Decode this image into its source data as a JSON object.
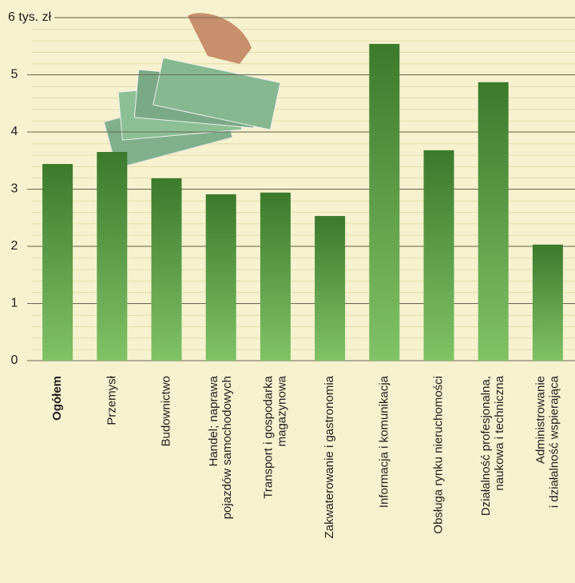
{
  "chart_data": {
    "type": "bar",
    "categories": [
      "Ogółem",
      "Przemysł",
      "Budownictwo",
      "Handel; naprawa\npojazdów samochodowych",
      "Transport i gospodarka\nmagazynowa",
      "Zakwaterowanie i gastronomia",
      "Informacja i komunikacja",
      "Obsługa rynku nieruchomości",
      "Działalność profesjonalna,\nnaukowa i techniczna",
      "Administrowanie\ni działalność wspierająca"
    ],
    "values": [
      3.44,
      3.65,
      3.19,
      2.91,
      2.94,
      2.53,
      5.54,
      3.68,
      4.87,
      2.03
    ],
    "color": "#4a8a36",
    "ylim": [
      0,
      6
    ],
    "yticks": [
      0,
      1,
      2,
      3,
      4,
      5,
      {
        "value": 6,
        "label": "6 tys. zł"
      }
    ],
    "grid": true
  }
}
